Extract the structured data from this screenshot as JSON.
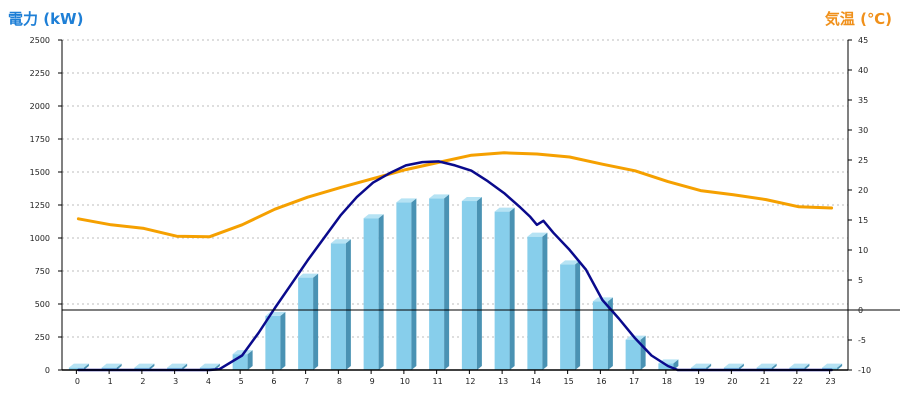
{
  "chart_data": {
    "type": "bar",
    "left_axis_title": "電力 (kW)",
    "right_axis_title": "気温 (℃)",
    "left_axis_color": "#1e7fd6",
    "right_axis_color": "#f0901a",
    "left_ylim": [
      0,
      2500
    ],
    "left_ticks": [
      0,
      250,
      500,
      750,
      1000,
      1250,
      1500,
      1750,
      2000,
      2250,
      2500
    ],
    "right_ylim": [
      -10,
      45
    ],
    "right_ticks": [
      -10,
      -5,
      0,
      5,
      10,
      15,
      20,
      25,
      30,
      35,
      40,
      45
    ],
    "grid": true,
    "categories": [
      "0",
      "1",
      "2",
      "3",
      "4",
      "5",
      "6",
      "7",
      "8",
      "9",
      "10",
      "11",
      "12",
      "13",
      "14",
      "15",
      "16",
      "17",
      "18",
      "19",
      "20",
      "21",
      "22",
      "23"
    ],
    "series": [
      {
        "kind": "bar",
        "axis": "left",
        "color": "#87ceeb",
        "values": [
          18,
          18,
          18,
          18,
          18,
          120,
          410,
          700,
          960,
          1150,
          1270,
          1300,
          1280,
          1200,
          1010,
          800,
          520,
          230,
          50,
          18,
          18,
          18,
          18,
          18
        ]
      },
      {
        "kind": "line",
        "axis": "right",
        "color": "#f5a000",
        "x": [
          0,
          1,
          2,
          3,
          4,
          5,
          6,
          7,
          8,
          9,
          10,
          11,
          12,
          13,
          14,
          15,
          16,
          17,
          18,
          19,
          20,
          21,
          22,
          23
        ],
        "values": [
          15.2,
          14.2,
          13.6,
          12.3,
          12.2,
          14.2,
          16.8,
          18.8,
          20.4,
          21.9,
          23.4,
          24.6,
          25.8,
          26.2,
          26.0,
          25.5,
          24.3,
          23.2,
          21.4,
          19.9,
          19.2,
          18.4,
          17.2,
          17.0
        ]
      },
      {
        "kind": "line",
        "axis": "left",
        "color": "#0a0a8c",
        "x": [
          0,
          1,
          2,
          3,
          4,
          4.3,
          5,
          5.5,
          6,
          6.5,
          7,
          7.5,
          8,
          8.5,
          9,
          9.5,
          10,
          10.5,
          11,
          11.5,
          12,
          12.5,
          13,
          13.5,
          13.8,
          14,
          14.2,
          14.5,
          15,
          15.5,
          16,
          16.5,
          17,
          17.5,
          18,
          18.3,
          19,
          20,
          21,
          22,
          23
        ],
        "values": [
          0,
          0,
          0,
          0,
          0,
          5,
          110,
          280,
          470,
          650,
          830,
          1000,
          1170,
          1310,
          1420,
          1490,
          1550,
          1575,
          1580,
          1550,
          1510,
          1430,
          1340,
          1230,
          1160,
          1100,
          1130,
          1040,
          910,
          760,
          530,
          390,
          240,
          110,
          30,
          0,
          0,
          0,
          0,
          0,
          0
        ]
      }
    ]
  }
}
